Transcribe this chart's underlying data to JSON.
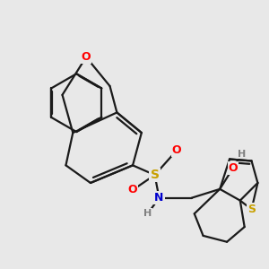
{
  "background_color": "#e8e8e8",
  "bond_color": "#1a1a1a",
  "atom_colors": {
    "O": "#ff0000",
    "S_sulfide": "#c8a000",
    "S_sulfonamide": "#c8a000",
    "N": "#0000cd",
    "H": "#808080",
    "C": "#1a1a1a"
  },
  "line_width": 1.6,
  "figsize": [
    3.0,
    3.0
  ],
  "dpi": 100
}
